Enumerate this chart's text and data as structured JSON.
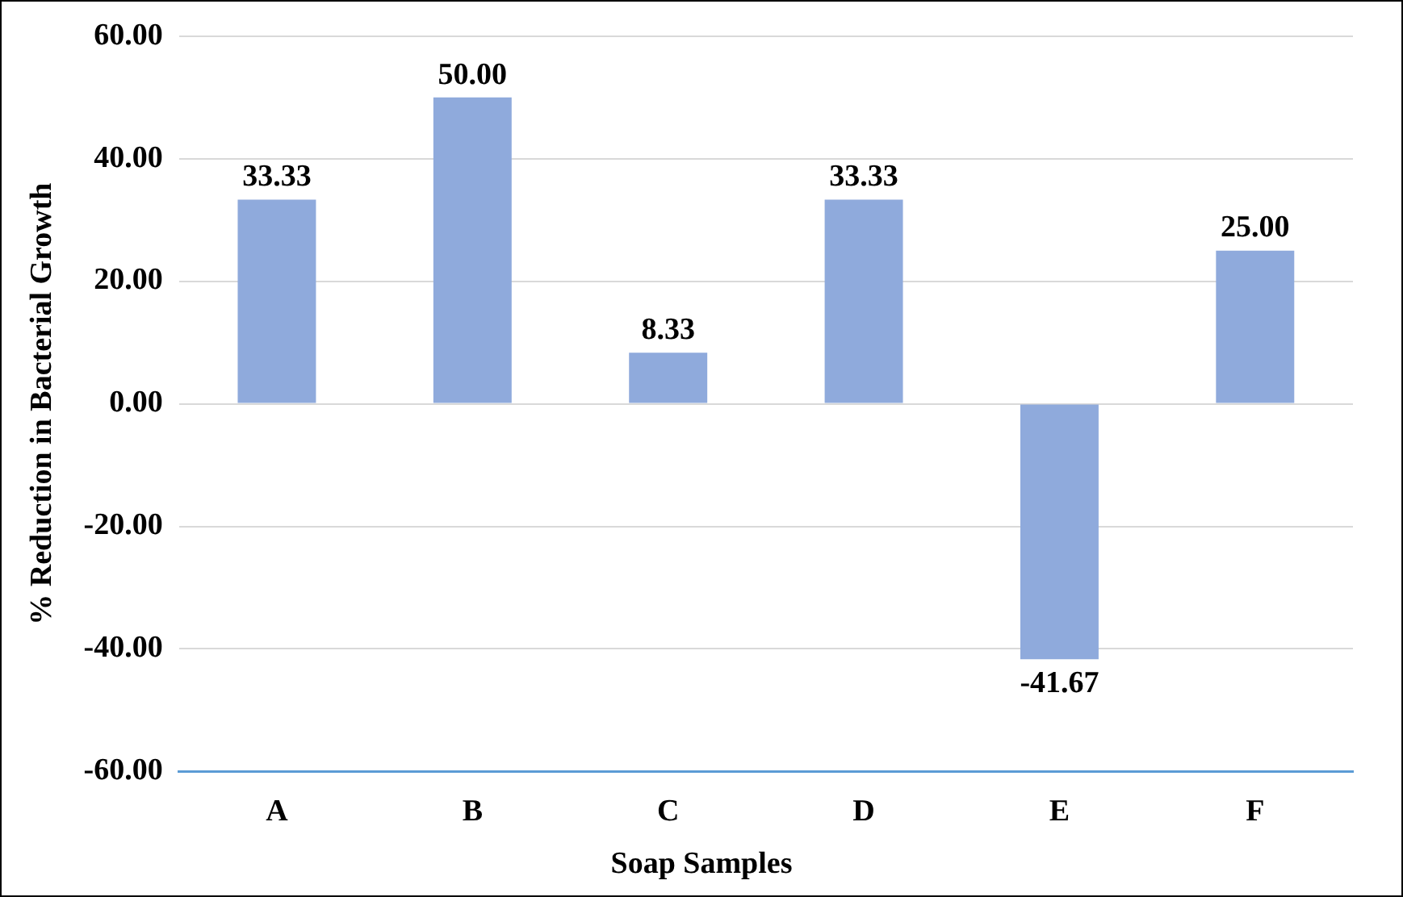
{
  "chart_data": {
    "type": "bar",
    "xlabel": "Soap Samples",
    "ylabel": "% Reduction in Bacterial Growth",
    "categories": [
      "A",
      "B",
      "C",
      "D",
      "E",
      "F"
    ],
    "values": [
      33.33,
      50,
      8.33,
      33.33,
      -41.67,
      25
    ],
    "value_labels": [
      "33.33",
      "50.00",
      "8.33",
      "33.33",
      "-41.67",
      "25.00"
    ],
    "color": "#8faadc",
    "ylim": [
      -60,
      60
    ],
    "yticks": [
      {
        "value": -60,
        "label": "-60.00"
      },
      {
        "value": -40,
        "label": "-40.00"
      },
      {
        "value": -20,
        "label": "-20.00"
      },
      {
        "value": 0,
        "label": "0.00"
      },
      {
        "value": 20,
        "label": "20.00"
      },
      {
        "value": 40,
        "label": "40.00"
      },
      {
        "value": 60,
        "label": "60.00"
      }
    ],
    "grid": "y",
    "legend": false
  }
}
